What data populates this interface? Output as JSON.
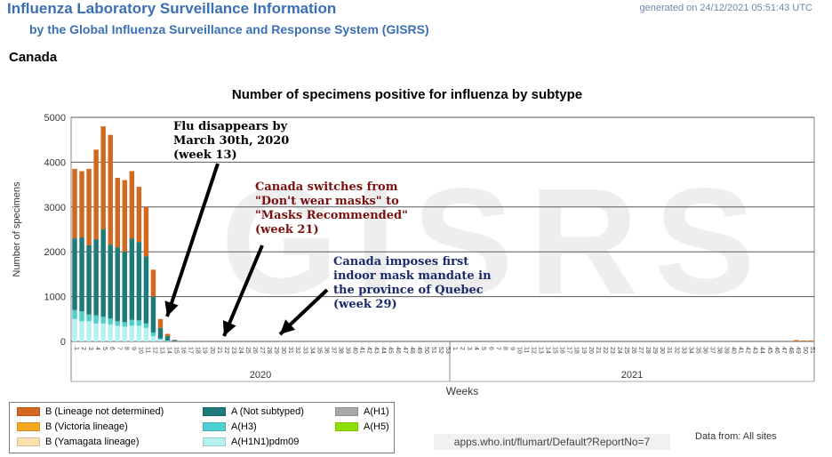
{
  "header": {
    "title": "Influenza Laboratory Surveillance Information",
    "subtitle": "by the Global Influenza Surveillance and Response System (GISRS)",
    "generated": "generated on 24/12/2021 05:51:43 UTC",
    "country": "Canada"
  },
  "watermark": "GISRS",
  "annotations": [
    {
      "id": "flu-disappears",
      "lines": [
        "Flu disappears by",
        "March 30th, 2020",
        "(week 13)"
      ],
      "color": "#000000",
      "target_week": 13
    },
    {
      "id": "mask-switch",
      "lines": [
        "Canada switches from",
        "\"Don't wear masks\" to",
        "\"Masks Recommended\"",
        "(week 21)"
      ],
      "color": "#7a1010",
      "target_week": 21
    },
    {
      "id": "quebec-mandate",
      "lines": [
        "Canada imposes first",
        "indoor mask mandate in",
        "the province of Quebec",
        "(week 29)"
      ],
      "color": "#1a2a6c",
      "target_week": 29
    }
  ],
  "footer": {
    "url": "apps.who.int/flumart/Default?ReportNo=7",
    "data_from": "Data from: All sites"
  },
  "colors": {
    "B_lineage_not_determined": "#d2691e",
    "B_victoria": "#f5a623",
    "B_yamagata": "#fde0b0",
    "A_not_subtyped": "#1e7b7b",
    "A_H3": "#4fcfcf",
    "A_H1N1pdm09": "#b7f0f0",
    "A_H1": "#a8a8a8",
    "A_H5": "#8ee000",
    "gridline": "#5a5a5a",
    "watermark": "#eeeeee"
  },
  "chart_data": {
    "type": "bar",
    "stacked": true,
    "title": "Number of specimens positive for influenza by subtype",
    "xlabel": "Weeks",
    "ylabel": "Number of specimens",
    "ylim": [
      0,
      5000
    ],
    "yticks": [
      0,
      1000,
      2000,
      3000,
      4000,
      5000
    ],
    "grid": true,
    "year_labels": [
      {
        "label": "2020",
        "from_week": 1,
        "to_week": 53
      },
      {
        "label": "2021",
        "from_week": 54,
        "to_week": 104
      }
    ],
    "weeks": [
      1,
      2,
      3,
      4,
      5,
      6,
      7,
      8,
      9,
      10,
      11,
      12,
      13,
      14,
      15,
      16,
      17,
      18,
      19,
      20,
      21,
      22,
      23,
      24,
      25,
      26,
      27,
      28,
      29,
      30,
      31,
      32,
      33,
      34,
      35,
      36,
      37,
      38,
      39,
      40,
      41,
      42,
      43,
      44,
      45,
      46,
      47,
      48,
      49,
      50,
      51,
      52,
      53,
      54,
      55,
      56,
      57,
      58,
      59,
      60,
      61,
      62,
      63,
      64,
      65,
      66,
      67,
      68,
      69,
      70,
      71,
      72,
      73,
      74,
      75,
      76,
      77,
      78,
      79,
      80,
      81,
      82,
      83,
      84,
      85,
      86,
      87,
      88,
      89,
      90,
      91,
      92,
      93,
      94,
      95,
      96,
      97,
      98,
      99,
      100,
      101,
      102,
      103,
      104
    ],
    "series": [
      {
        "name": "A(H1N1)pdm09",
        "color_key": "A_H1N1pdm09",
        "values": [
          500,
          450,
          450,
          400,
          400,
          380,
          350,
          330,
          350,
          350,
          300,
          120,
          40,
          10,
          5,
          0,
          0,
          0,
          0,
          0,
          0,
          0,
          0,
          0,
          0,
          0,
          0,
          0,
          0,
          0,
          0,
          0,
          0,
          0,
          0,
          0,
          0,
          0,
          0,
          0,
          0,
          0,
          0,
          0,
          0,
          0,
          0,
          0,
          0,
          0,
          0,
          0,
          0,
          0,
          0,
          0,
          0,
          0,
          0,
          0,
          0,
          0,
          0,
          0,
          0,
          0,
          0,
          0,
          0,
          0,
          0,
          0,
          0,
          0,
          0,
          0,
          0,
          0,
          0,
          0,
          0,
          0,
          0,
          0,
          0,
          0,
          0,
          0,
          0,
          0,
          0,
          0,
          0,
          0,
          0,
          0,
          0,
          0,
          0,
          0,
          0,
          0,
          0,
          0
        ]
      },
      {
        "name": "A(H3)",
        "color_key": "A_H3",
        "values": [
          200,
          220,
          150,
          180,
          150,
          130,
          100,
          100,
          130,
          120,
          100,
          80,
          30,
          8,
          3,
          0,
          0,
          0,
          0,
          0,
          0,
          0,
          0,
          0,
          0,
          0,
          0,
          0,
          0,
          0,
          0,
          0,
          0,
          0,
          0,
          0,
          0,
          0,
          0,
          0,
          0,
          0,
          0,
          0,
          0,
          0,
          0,
          0,
          0,
          0,
          0,
          0,
          0,
          0,
          0,
          0,
          0,
          0,
          0,
          0,
          0,
          0,
          0,
          0,
          0,
          0,
          0,
          0,
          0,
          0,
          0,
          0,
          0,
          0,
          0,
          0,
          0,
          0,
          0,
          0,
          0,
          0,
          0,
          0,
          0,
          0,
          0,
          0,
          0,
          0,
          0,
          0,
          0,
          0,
          0,
          0,
          0,
          0,
          0,
          0,
          0,
          0,
          0,
          0
        ]
      },
      {
        "name": "A (Not subtyped)",
        "color_key": "A_not_subtyped",
        "values": [
          1600,
          1650,
          1550,
          1700,
          1950,
          1650,
          1650,
          1570,
          1820,
          1750,
          1500,
          800,
          230,
          100,
          20,
          0,
          0,
          0,
          0,
          0,
          0,
          0,
          0,
          0,
          0,
          0,
          0,
          0,
          0,
          0,
          0,
          0,
          0,
          0,
          0,
          0,
          0,
          0,
          0,
          0,
          0,
          0,
          0,
          0,
          0,
          0,
          0,
          0,
          0,
          0,
          0,
          0,
          0,
          0,
          0,
          0,
          0,
          0,
          0,
          0,
          0,
          0,
          0,
          0,
          0,
          0,
          0,
          0,
          0,
          0,
          0,
          0,
          0,
          0,
          0,
          0,
          0,
          0,
          0,
          0,
          0,
          0,
          0,
          0,
          0,
          0,
          0,
          0,
          0,
          0,
          0,
          0,
          0,
          0,
          0,
          0,
          0,
          0,
          0,
          0,
          0,
          0,
          0,
          0
        ]
      },
      {
        "name": "B (Lineage not determined)",
        "color_key": "B_lineage_not_determined",
        "values": [
          1550,
          1480,
          1700,
          2000,
          2300,
          2450,
          1550,
          1600,
          1500,
          1230,
          1100,
          600,
          200,
          50,
          10,
          0,
          0,
          0,
          0,
          0,
          0,
          0,
          0,
          0,
          0,
          0,
          0,
          0,
          0,
          0,
          0,
          0,
          0,
          0,
          0,
          0,
          0,
          0,
          0,
          0,
          0,
          0,
          0,
          0,
          0,
          0,
          0,
          0,
          0,
          0,
          0,
          0,
          0,
          0,
          0,
          0,
          0,
          0,
          0,
          0,
          0,
          0,
          0,
          0,
          0,
          0,
          0,
          0,
          0,
          0,
          0,
          0,
          0,
          0,
          0,
          0,
          0,
          0,
          0,
          0,
          0,
          0,
          0,
          0,
          0,
          0,
          0,
          0,
          0,
          0,
          0,
          0,
          0,
          0,
          0,
          0,
          0,
          0,
          0,
          0,
          0,
          30,
          20,
          20
        ]
      }
    ],
    "legend": [
      {
        "label": "B (Lineage not determined)",
        "color_key": "B_lineage_not_determined"
      },
      {
        "label": "A (Not subtyped)",
        "color_key": "A_not_subtyped"
      },
      {
        "label": "A(H1)",
        "color_key": "A_H1"
      },
      {
        "label": "B (Victoria lineage)",
        "color_key": "B_victoria"
      },
      {
        "label": "A(H3)",
        "color_key": "A_H3"
      },
      {
        "label": "A(H5)",
        "color_key": "A_H5"
      },
      {
        "label": "B (Yamagata lineage)",
        "color_key": "B_yamagata"
      },
      {
        "label": "A(H1N1)pdm09",
        "color_key": "A_H1N1pdm09"
      }
    ],
    "legend_placement": "bottom-left"
  }
}
